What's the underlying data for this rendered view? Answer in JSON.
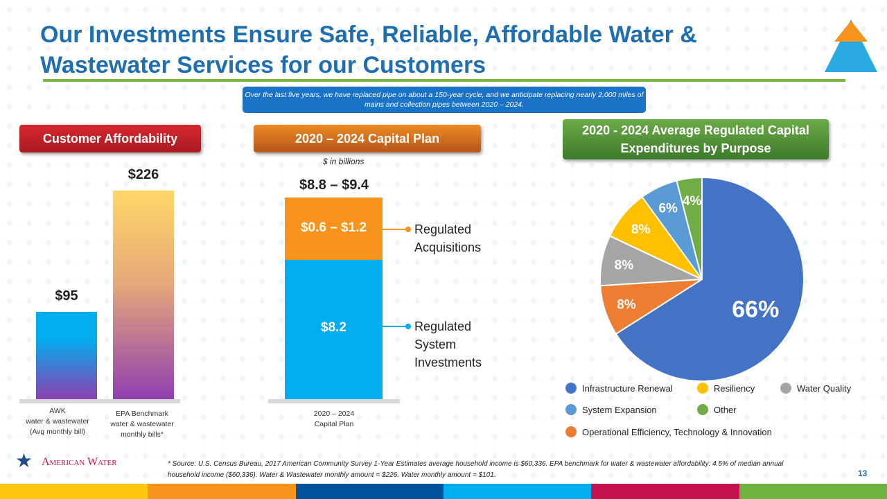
{
  "title": "Our Investments Ensure Safe, Reliable, Affordable Water & Wastewater Services for our Customers",
  "note": "Over the last five years, we have replaced pipe on about a 150-year cycle, and we anticipate replacing nearly 2,000 miles of mains and collection pipes between 2020 – 2024.",
  "headers": {
    "affordability": "Customer Affordability",
    "capital_plan": "2020 – 2024 Capital Plan",
    "capex": "2020 - 2024 Average Regulated Capital Expenditures by Purpose"
  },
  "chart_data": [
    {
      "type": "bar",
      "title": "Customer Affordability",
      "categories": [
        "AWK water & wastewater (Avg monthly bill)",
        "EPA Benchmark water & wastewater monthly bills*"
      ],
      "values": [
        95,
        226
      ],
      "data_labels": [
        "$95",
        "$226"
      ],
      "colors": [
        "#00aeef",
        "#fdd766"
      ]
    },
    {
      "type": "bar",
      "stacked": true,
      "title": "2020 – 2024 Capital Plan",
      "unit": "$ in billions",
      "categories": [
        "2020 – 2024 Capital Plan"
      ],
      "total_label": "$8.8 – $9.4",
      "series": [
        {
          "name": "Regulated System Investments",
          "value": 8.2,
          "label": "$8.2",
          "color": "#00aeef"
        },
        {
          "name": "Regulated Acquisitions",
          "value": [
            0.6,
            1.2
          ],
          "label": "$0.6 – $1.2",
          "color": "#f7941d"
        }
      ]
    },
    {
      "type": "pie",
      "title": "2020 - 2024 Average Regulated Capital Expenditures by Purpose",
      "slices": [
        {
          "name": "Infrastructure Renewal",
          "value": 66,
          "label": "66%",
          "color": "#4472c4"
        },
        {
          "name": "Operational Efficiency, Technology & Innovation",
          "value": 8,
          "label": "8%",
          "color": "#ed7d31"
        },
        {
          "name": "Water Quality",
          "value": 8,
          "label": "8%",
          "color": "#a5a5a5"
        },
        {
          "name": "Resiliency",
          "value": 8,
          "label": "8%",
          "color": "#ffc000"
        },
        {
          "name": "System Expansion",
          "value": 6,
          "label": "6%",
          "color": "#5b9bd5"
        },
        {
          "name": "Other",
          "value": 4,
          "label": "4%",
          "color": "#70ad47"
        }
      ],
      "legend_placement": "bottom"
    }
  ],
  "cat1": [
    "AWK",
    "water & wastewater",
    "(Avg monthly bill)"
  ],
  "cat2": [
    "EPA Benchmark",
    "water & wastewater",
    "monthly bills*"
  ],
  "cat3": [
    "2020 – 2024",
    "Capital Plan"
  ],
  "acq_label": [
    "Regulated",
    "Acquisitions"
  ],
  "sys_label": [
    "Regulated",
    "System",
    "Investments"
  ],
  "logo_text": "American Water",
  "footnote": "* Source: U.S. Census Bureau, 2017 American Community Survey 1-Year Estimates average household income is $60,336.  EPA benchmark for water & wastewater affordability: 4.5% of median annual household income ($60,336). Water & Wastewater monthly amount = $226.  Water monthly amount = $101.",
  "page_number": "13",
  "stripe_colors": [
    "#fdc70e",
    "#f7941d",
    "#00529b",
    "#00aeef",
    "#c4124f",
    "#6cb33f"
  ]
}
